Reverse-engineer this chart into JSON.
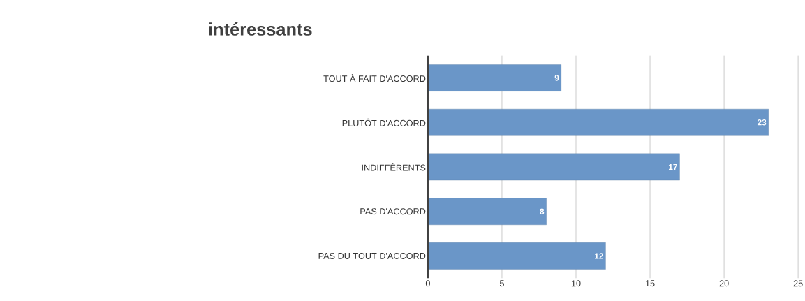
{
  "chart_data": {
    "type": "bar",
    "orientation": "horizontal",
    "title": "intéressants",
    "categories": [
      "TOUT À FAIT D'ACCORD",
      "PLUTÔT D'ACCORD",
      "INDIFFÉRENTS",
      "PAS D'ACCORD",
      "PAS DU TOUT D'ACCORD"
    ],
    "values": [
      9,
      23,
      17,
      8,
      12
    ],
    "color": "#6a96c8",
    "xlim": [
      0,
      25
    ],
    "xticks": [
      0,
      5,
      10,
      15,
      20,
      25
    ],
    "grid": "x",
    "data_labels": true
  }
}
